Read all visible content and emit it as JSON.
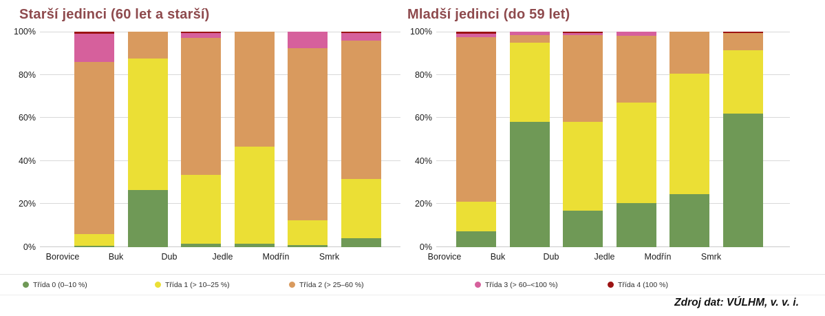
{
  "page": {
    "source_note": "Zdroj dat: VÚLHM, v. v. i."
  },
  "axis": {
    "y_ticks": [
      "100%",
      "80%",
      "60%",
      "40%",
      "20%",
      "0%"
    ],
    "ylim": [
      0,
      100
    ],
    "grid": true,
    "unit": "%"
  },
  "legend": {
    "position": "bottom",
    "items": [
      {
        "label": "Třída 0 (0–10 %)",
        "color": "#6f9956"
      },
      {
        "label": "Třída 1 (> 10–25 %)",
        "color": "#ebdf35"
      },
      {
        "label": "Třída 2 (> 25–60 %)",
        "color": "#d99a5e"
      },
      {
        "label": "Třída 3 (> 60–<100 %)",
        "color": "#d6609c"
      },
      {
        "label": "Třída 4 (100 %)",
        "color": "#9c1313"
      }
    ]
  },
  "chart_data": [
    {
      "type": "bar",
      "stacked": true,
      "title": "Starší jedinci (60 let a starší)",
      "categories": [
        "Borovice",
        "Buk",
        "Dub",
        "Jedle",
        "Modřín",
        "Smrk"
      ],
      "series": [
        {
          "name": "Třída 0 (0–10 %)",
          "color": "#6f9956",
          "values": [
            0.5,
            26.5,
            1.5,
            1.5,
            1.0,
            4.0
          ]
        },
        {
          "name": "Třída 1 (> 10–25 %)",
          "color": "#ebdf35",
          "values": [
            5.5,
            61.0,
            32.0,
            45.0,
            11.5,
            27.5
          ]
        },
        {
          "name": "Třída 2 (> 25–60 %)",
          "color": "#d99a5e",
          "values": [
            80.0,
            12.5,
            63.5,
            53.5,
            80.0,
            64.5
          ]
        },
        {
          "name": "Třída 3 (> 60–<100 %)",
          "color": "#d6609c",
          "values": [
            13.0,
            0.0,
            2.5,
            0.0,
            7.5,
            3.5
          ]
        },
        {
          "name": "Třída 4 (100 %)",
          "color": "#9c1313",
          "values": [
            1.0,
            0.0,
            0.5,
            0.0,
            0.0,
            0.5
          ]
        }
      ],
      "xlabel": "",
      "ylabel": "",
      "ylim": [
        0,
        100
      ]
    },
    {
      "type": "bar",
      "stacked": true,
      "title": "Mladší jedinci (do 59 let)",
      "categories": [
        "Borovice",
        "Buk",
        "Dub",
        "Jedle",
        "Modřín",
        "Smrk"
      ],
      "series": [
        {
          "name": "Třída 0 (0–10 %)",
          "color": "#6f9956",
          "values": [
            7.5,
            58.0,
            17.0,
            20.5,
            24.5,
            62.0
          ]
        },
        {
          "name": "Třída 1 (> 10–25 %)",
          "color": "#ebdf35",
          "values": [
            13.5,
            37.0,
            41.0,
            46.5,
            56.0,
            29.5
          ]
        },
        {
          "name": "Třída 2 (> 25–60 %)",
          "color": "#d99a5e",
          "values": [
            76.5,
            3.5,
            40.5,
            31.0,
            19.5,
            8.0
          ]
        },
        {
          "name": "Třída 3 (> 60–<100 %)",
          "color": "#d6609c",
          "values": [
            1.5,
            1.5,
            1.0,
            2.0,
            0.0,
            0.0
          ]
        },
        {
          "name": "Třída 4 (100 %)",
          "color": "#9c1313",
          "values": [
            1.0,
            0.0,
            0.5,
            0.0,
            0.0,
            0.5
          ]
        }
      ],
      "xlabel": "",
      "ylabel": "",
      "ylim": [
        0,
        100
      ]
    }
  ]
}
